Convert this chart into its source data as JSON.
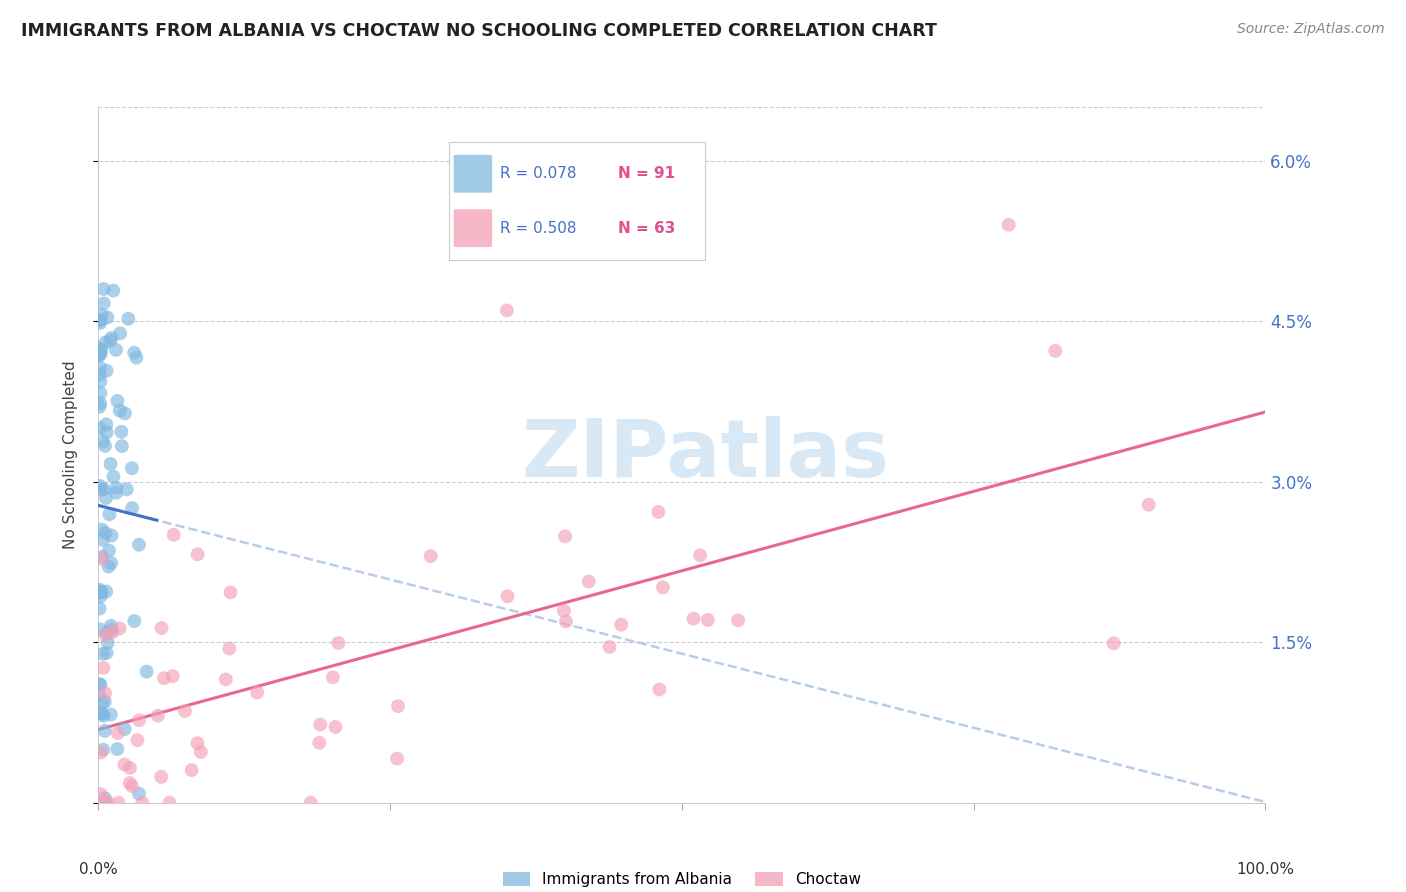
{
  "title": "IMMIGRANTS FROM ALBANIA VS CHOCTAW NO SCHOOLING COMPLETED CORRELATION CHART",
  "source": "Source: ZipAtlas.com",
  "ylabel": "No Schooling Completed",
  "yticks": [
    0.0,
    0.015,
    0.03,
    0.045,
    0.06
  ],
  "ytick_labels": [
    "",
    "1.5%",
    "3.0%",
    "4.5%",
    "6.0%"
  ],
  "xlim": [
    0.0,
    1.0
  ],
  "ylim": [
    0.0,
    0.065
  ],
  "legend_r1": "R = 0.078",
  "legend_n1": "N = 91",
  "legend_r2": "R = 0.508",
  "legend_n2": "N = 63",
  "label1": "Immigrants from Albania",
  "label2": "Choctaw",
  "color1": "#7fb8e0",
  "color2": "#f4a0b8",
  "trendline1_solid_color": "#4472c4",
  "trendline1_dash_color": "#b0c8e8",
  "trendline2_color": "#e8688c",
  "watermark_text": "ZIPatlas",
  "watermark_color": "#d8e8f4",
  "r_n_color": "#4472c4",
  "n_val_color": "#e05090"
}
